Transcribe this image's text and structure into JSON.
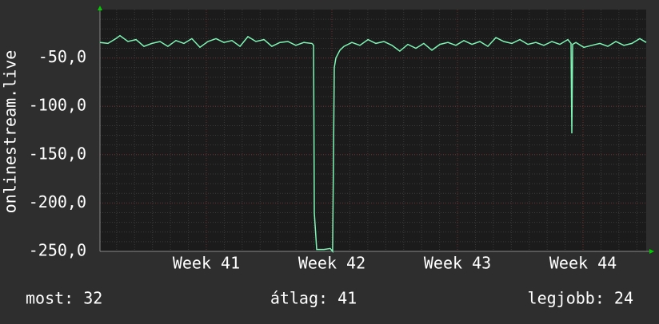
{
  "chart_data": {
    "type": "line",
    "y_label": "onlinestream.live",
    "x": [
      40.153,
      40.217,
      40.28,
      40.312,
      40.376,
      40.44,
      40.503,
      40.567,
      40.631,
      40.694,
      40.758,
      40.822,
      40.885,
      40.949,
      41.013,
      41.077,
      41.14,
      41.204,
      41.268,
      41.331,
      41.395,
      41.459,
      41.522,
      41.586,
      41.65,
      41.713,
      41.777,
      41.841,
      41.854,
      41.86,
      41.879,
      41.936,
      41.987,
      42.006,
      42.019,
      42.032,
      42.064,
      42.096,
      42.159,
      42.223,
      42.287,
      42.35,
      42.414,
      42.478,
      42.541,
      42.605,
      42.669,
      42.732,
      42.796,
      42.86,
      42.924,
      42.987,
      43.051,
      43.115,
      43.178,
      43.242,
      43.306,
      43.369,
      43.433,
      43.497,
      43.561,
      43.624,
      43.688,
      43.752,
      43.815,
      43.879,
      43.904,
      43.911,
      43.917,
      43.943,
      44.006,
      44.07,
      44.134,
      44.197,
      44.261,
      44.325,
      44.389,
      44.452,
      44.503
    ],
    "series": [
      {
        "name": "onlinestream.live",
        "color": "#7df5b4",
        "values": [
          -34,
          -35,
          -30,
          -27,
          -33,
          -31,
          -38,
          -35,
          -33,
          -38,
          -32,
          -35,
          -30,
          -39,
          -33,
          -30,
          -34,
          -32,
          -38,
          -28,
          -33,
          -31,
          -38,
          -34,
          -33,
          -37,
          -34,
          -35,
          -37,
          -210,
          -248,
          -248,
          -247,
          -250,
          -60,
          -50,
          -42,
          -38,
          -34,
          -37,
          -31,
          -35,
          -33,
          -37,
          -43,
          -36,
          -40,
          -35,
          -42,
          -36,
          -34,
          -37,
          -32,
          -36,
          -33,
          -38,
          -29,
          -33,
          -35,
          -31,
          -36,
          -34,
          -37,
          -33,
          -36,
          -31,
          -35,
          -128,
          -36,
          -34,
          -39,
          -37,
          -35,
          -38,
          -33,
          -37,
          -35,
          -30,
          -34
        ]
      }
    ],
    "xlim": [
      40.153,
      44.503
    ],
    "xticks": [
      {
        "value": 41,
        "label": "Week 41"
      },
      {
        "value": 42,
        "label": "Week 42"
      },
      {
        "value": 43,
        "label": "Week 43"
      },
      {
        "value": 44,
        "label": "Week 44"
      }
    ],
    "ylim": [
      -250,
      0
    ],
    "yticks": [
      {
        "value": -250,
        "label": "-250,0"
      },
      {
        "value": -200,
        "label": "-200,0"
      },
      {
        "value": -150,
        "label": "-150,0"
      },
      {
        "value": -100,
        "label": "-100,0"
      },
      {
        "value": -50,
        "label": "-50,0"
      }
    ],
    "grid": true,
    "footer": [
      "most: 32",
      "átlag: 41",
      "legjobb: 24"
    ]
  }
}
